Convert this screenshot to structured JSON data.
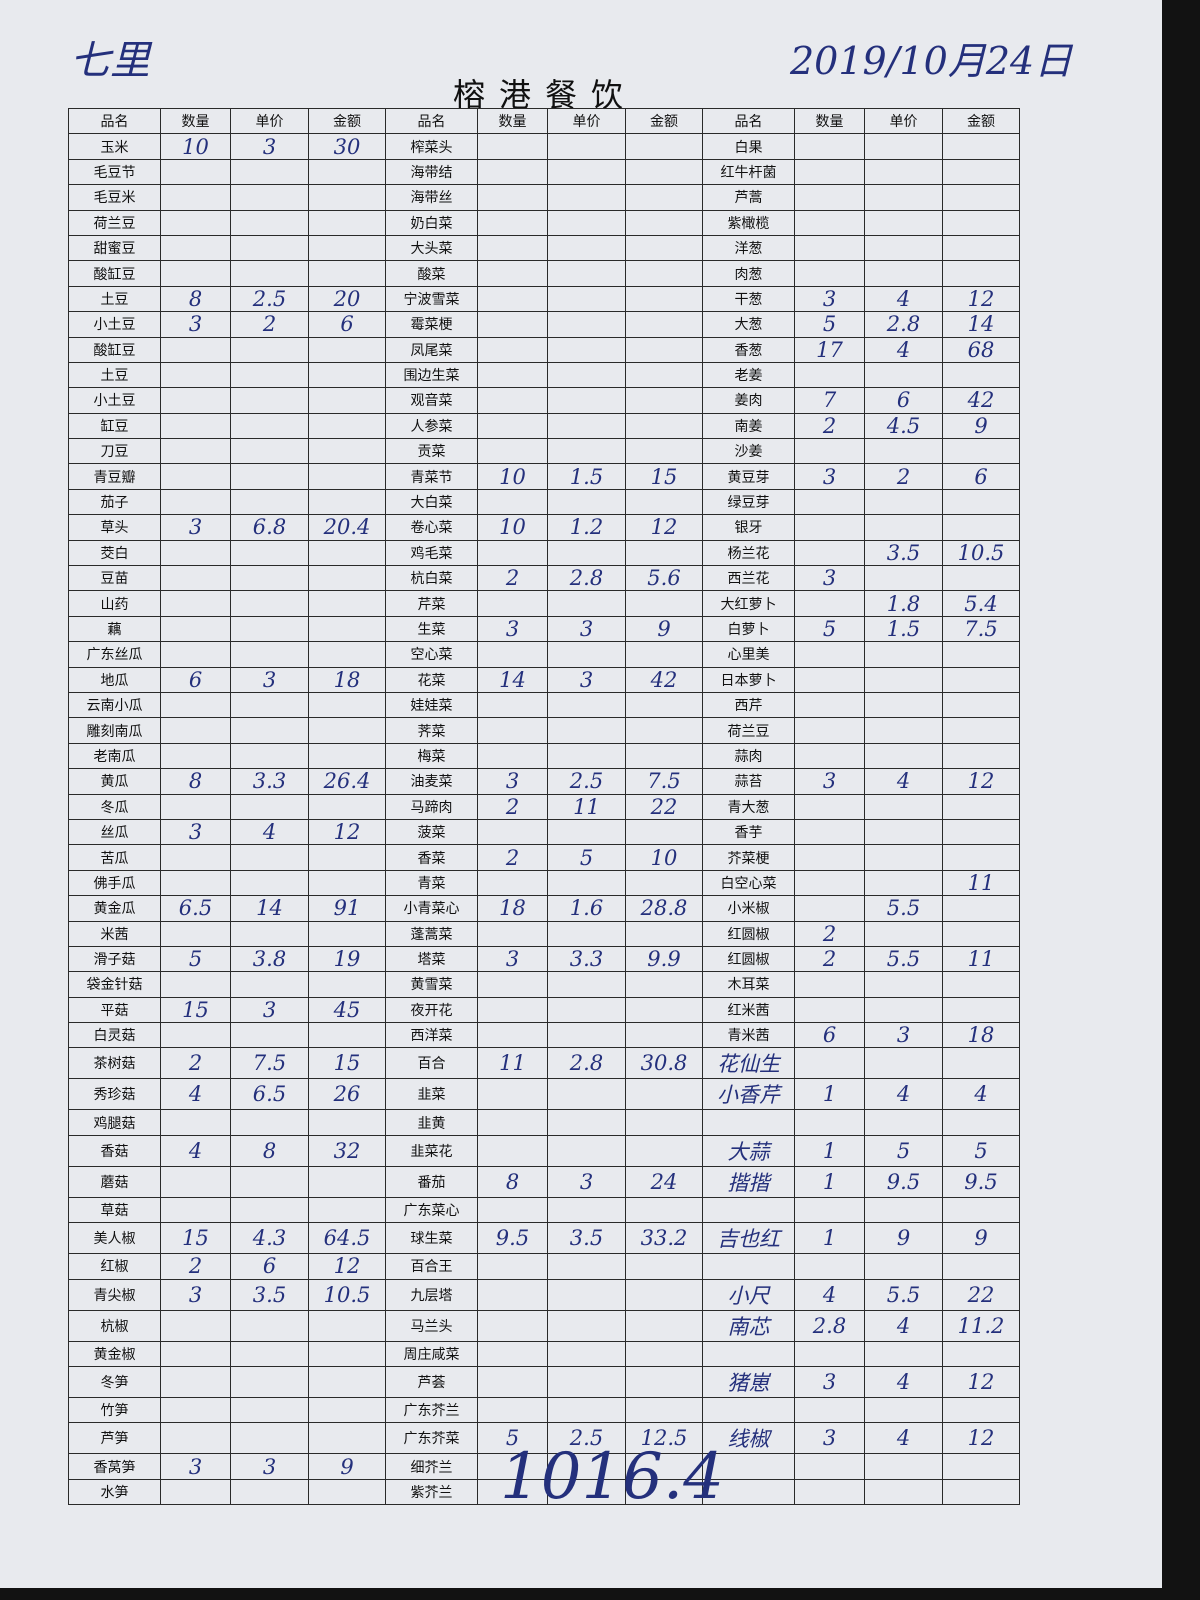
{
  "header": {
    "note": "七里",
    "date": "2019/10月24日",
    "title": "榕港餐饮"
  },
  "table": {
    "columns": [
      "品名",
      "数量",
      "单价",
      "金额",
      "品名",
      "数量",
      "单价",
      "金额",
      "品名",
      "数量",
      "单价",
      "金额"
    ],
    "rows": [
      [
        "玉米",
        "10",
        "3",
        "30",
        "榨菜头",
        null,
        null,
        null,
        "白果",
        null,
        null,
        null
      ],
      [
        "毛豆节",
        null,
        null,
        null,
        "海带结",
        null,
        null,
        null,
        "红牛杆菌",
        null,
        null,
        null
      ],
      [
        "毛豆米",
        null,
        null,
        null,
        "海带丝",
        null,
        null,
        null,
        "芦蒿",
        null,
        null,
        null
      ],
      [
        "荷兰豆",
        null,
        null,
        null,
        "奶白菜",
        null,
        null,
        null,
        "紫橄榄",
        null,
        null,
        null
      ],
      [
        "甜蜜豆",
        null,
        null,
        null,
        "大头菜",
        null,
        null,
        null,
        "洋葱",
        null,
        null,
        null
      ],
      [
        "酸缸豆",
        null,
        null,
        null,
        "酸菜",
        null,
        null,
        null,
        "肉葱",
        null,
        null,
        null
      ],
      [
        "土豆",
        "8",
        "2.5",
        "20",
        "宁波雪菜",
        null,
        null,
        null,
        "干葱",
        "3",
        "4",
        "12"
      ],
      [
        "小土豆",
        "3",
        "2",
        "6",
        "霉菜梗",
        null,
        null,
        null,
        "大葱",
        "5",
        "2.8",
        "14"
      ],
      [
        "酸缸豆",
        null,
        null,
        null,
        "凤尾菜",
        null,
        null,
        null,
        "香葱",
        "17",
        "4",
        "68"
      ],
      [
        "土豆",
        null,
        null,
        null,
        "围边生菜",
        null,
        null,
        null,
        "老姜",
        null,
        null,
        null
      ],
      [
        "小土豆",
        null,
        null,
        null,
        "观音菜",
        null,
        null,
        null,
        "姜肉",
        "7",
        "6",
        "42"
      ],
      [
        "缸豆",
        null,
        null,
        null,
        "人参菜",
        null,
        null,
        null,
        "南姜",
        "2",
        "4.5",
        "9"
      ],
      [
        "刀豆",
        null,
        null,
        null,
        "贡菜",
        null,
        null,
        null,
        "沙姜",
        null,
        null,
        null
      ],
      [
        "青豆瓣",
        null,
        null,
        null,
        "青菜节",
        "10",
        "1.5",
        "15",
        "黄豆芽",
        "3",
        "2",
        "6"
      ],
      [
        "茄子",
        null,
        null,
        null,
        "大白菜",
        null,
        null,
        null,
        "绿豆芽",
        null,
        null,
        null
      ],
      [
        "草头",
        "3",
        "6.8",
        "20.4",
        "卷心菜",
        "10",
        "1.2",
        "12",
        "银牙",
        null,
        null,
        null
      ],
      [
        "茭白",
        null,
        null,
        null,
        "鸡毛菜",
        null,
        null,
        null,
        "杨兰花",
        null,
        "3.5",
        "10.5"
      ],
      [
        "豆苗",
        null,
        null,
        null,
        "杭白菜",
        "2",
        "2.8",
        "5.6",
        "西兰花",
        "3",
        null,
        null
      ],
      [
        "山药",
        null,
        null,
        null,
        "芹菜",
        null,
        null,
        null,
        "大红萝卜",
        null,
        "1.8",
        "5.4"
      ],
      [
        "藕",
        null,
        null,
        null,
        "生菜",
        "3",
        "3",
        "9",
        "白萝卜",
        "5",
        "1.5",
        "7.5"
      ],
      [
        "广东丝瓜",
        null,
        null,
        null,
        "空心菜",
        null,
        null,
        null,
        "心里美",
        null,
        null,
        null
      ],
      [
        "地瓜",
        "6",
        "3",
        "18",
        "花菜",
        "14",
        "3",
        "42",
        "日本萝卜",
        null,
        null,
        null
      ],
      [
        "云南小瓜",
        null,
        null,
        null,
        "娃娃菜",
        null,
        null,
        null,
        "西芹",
        null,
        null,
        null
      ],
      [
        "雕刻南瓜",
        null,
        null,
        null,
        "荠菜",
        null,
        null,
        null,
        "荷兰豆",
        null,
        null,
        null
      ],
      [
        "老南瓜",
        null,
        null,
        null,
        "梅菜",
        null,
        null,
        null,
        "蒜肉",
        null,
        null,
        null
      ],
      [
        "黄瓜",
        "8",
        "3.3",
        "26.4",
        "油麦菜",
        "3",
        "2.5",
        "7.5",
        "蒜苔",
        "3",
        "4",
        "12"
      ],
      [
        "冬瓜",
        null,
        null,
        null,
        "马蹄肉",
        "2",
        "11",
        "22",
        "青大葱",
        null,
        null,
        null
      ],
      [
        "丝瓜",
        "3",
        "4",
        "12",
        "菠菜",
        null,
        null,
        null,
        "香芋",
        null,
        null,
        null
      ],
      [
        "苦瓜",
        null,
        null,
        null,
        "香菜",
        "2",
        "5",
        "10",
        "芥菜梗",
        null,
        null,
        null
      ],
      [
        "佛手瓜",
        null,
        null,
        null,
        "青菜",
        null,
        null,
        null,
        "白空心菜",
        null,
        null,
        "11"
      ],
      [
        "黄金瓜",
        "6.5",
        "14",
        "91",
        "小青菜心",
        "18",
        "1.6",
        "28.8",
        "小米椒",
        null,
        "5.5",
        null
      ],
      [
        "米茜",
        null,
        null,
        null,
        "蓬蒿菜",
        null,
        null,
        null,
        "红圆椒",
        "2",
        null,
        null
      ],
      [
        "滑子菇",
        "5",
        "3.8",
        "19",
        "塔菜",
        "3",
        "3.3",
        "9.9",
        "红圆椒",
        "2",
        "5.5",
        "11"
      ],
      [
        "袋金针菇",
        null,
        null,
        null,
        "黄雪菜",
        null,
        null,
        null,
        "木耳菜",
        null,
        null,
        null
      ],
      [
        "平菇",
        "15",
        "3",
        "45",
        "夜开花",
        null,
        null,
        null,
        "红米茜",
        null,
        null,
        null
      ],
      [
        "白灵菇",
        null,
        null,
        null,
        "西洋菜",
        null,
        null,
        null,
        "青米茜",
        "6",
        "3",
        "18"
      ],
      [
        "茶树菇",
        "2",
        "7.5",
        "15",
        "百合",
        "11",
        "2.8",
        "30.8",
        "花仙生",
        null,
        null,
        null
      ],
      [
        "秀珍菇",
        "4",
        "6.5",
        "26",
        "韭菜",
        null,
        null,
        null,
        "小香芹",
        "1",
        "4",
        "4"
      ],
      [
        "鸡腿菇",
        null,
        null,
        null,
        "韭黄",
        null,
        null,
        null,
        null,
        null,
        null,
        null
      ],
      [
        "香菇",
        "4",
        "8",
        "32",
        "韭菜花",
        null,
        null,
        null,
        "大蒜",
        "1",
        "5",
        "5"
      ],
      [
        "蘑菇",
        null,
        null,
        null,
        "番茄",
        "8",
        "3",
        "24",
        "揩揩",
        "1",
        "9.5",
        "9.5"
      ],
      [
        "草菇",
        null,
        null,
        null,
        "广东菜心",
        null,
        null,
        null,
        null,
        null,
        null,
        null
      ],
      [
        "美人椒",
        "15",
        "4.3",
        "64.5",
        "球生菜",
        "9.5",
        "3.5",
        "33.2",
        "吉也红",
        "1",
        "9",
        "9"
      ],
      [
        "红椒",
        "2",
        "6",
        "12",
        "百合王",
        null,
        null,
        null,
        null,
        null,
        null,
        null
      ],
      [
        "青尖椒",
        "3",
        "3.5",
        "10.5",
        "九层塔",
        null,
        null,
        null,
        "小尺",
        "4",
        "5.5",
        "22"
      ],
      [
        "杭椒",
        null,
        null,
        null,
        "马兰头",
        null,
        null,
        null,
        "南芯",
        "2.8",
        "4",
        "11.2"
      ],
      [
        "黄金椒",
        null,
        null,
        null,
        "周庄咸菜",
        null,
        null,
        null,
        null,
        null,
        null,
        null
      ],
      [
        "冬笋",
        null,
        null,
        null,
        "芦荟",
        null,
        null,
        null,
        "猪崽",
        "3",
        "4",
        "12"
      ],
      [
        "竹笋",
        null,
        null,
        null,
        "广东芥兰",
        null,
        null,
        null,
        null,
        null,
        null,
        null
      ],
      [
        "芦笋",
        null,
        null,
        null,
        "广东芥菜",
        "5",
        "2.5",
        "12.5",
        "线椒",
        "3",
        "4",
        "12"
      ],
      [
        "香莴笋",
        "3",
        "3",
        "9",
        "细芥兰",
        null,
        null,
        null,
        null,
        null,
        null,
        null
      ],
      [
        "水笋",
        null,
        null,
        null,
        "紫芥兰",
        null,
        null,
        null,
        null,
        null,
        null,
        null
      ]
    ]
  },
  "footer": {
    "total": "1016.4"
  }
}
